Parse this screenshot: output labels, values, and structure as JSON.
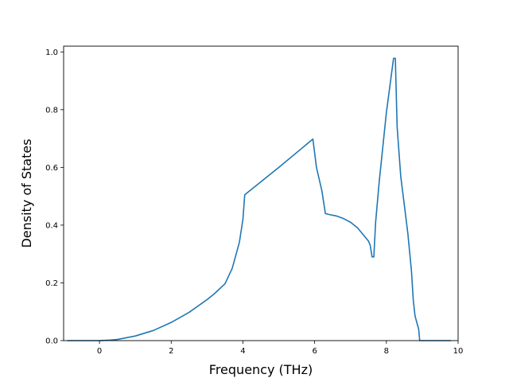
{
  "chart_data": {
    "type": "line",
    "title": "",
    "xlabel": "Frequency (THz)",
    "ylabel": "Density of States",
    "xlim": [
      -1.0,
      10.0
    ],
    "ylim": [
      0.0,
      1.02
    ],
    "xticks": [
      0,
      2,
      4,
      6,
      8,
      10
    ],
    "yticks": [
      0.0,
      0.2,
      0.4,
      0.6,
      0.8,
      1.0
    ],
    "xtick_labels": [
      "0",
      "2",
      "4",
      "6",
      "8",
      "10"
    ],
    "ytick_labels": [
      "0.0",
      "0.2",
      "0.4",
      "0.6",
      "0.8",
      "1.0"
    ],
    "grid": false,
    "series": [
      {
        "color": "#1f77b4",
        "x": [
          -0.9,
          -0.5,
          0.0,
          0.3,
          0.5,
          1.0,
          1.5,
          2.0,
          2.5,
          3.0,
          3.2,
          3.5,
          3.7,
          3.9,
          4.0,
          4.05,
          5.0,
          5.95,
          6.0,
          6.05,
          6.2,
          6.3,
          6.4,
          6.6,
          6.8,
          7.0,
          7.2,
          7.3,
          7.4,
          7.5,
          7.55,
          7.6,
          7.65,
          7.7,
          7.8,
          8.0,
          8.2,
          8.25,
          8.3,
          8.4,
          8.6,
          8.7,
          8.75,
          8.8,
          8.9,
          8.93,
          9.3,
          9.8
        ],
        "y": [
          0.0,
          0.0,
          0.0,
          0.002,
          0.004,
          0.016,
          0.035,
          0.063,
          0.098,
          0.142,
          0.162,
          0.197,
          0.25,
          0.34,
          0.42,
          0.505,
          0.6,
          0.698,
          0.65,
          0.6,
          0.52,
          0.44,
          0.437,
          0.432,
          0.423,
          0.41,
          0.39,
          0.375,
          0.36,
          0.345,
          0.33,
          0.29,
          0.29,
          0.41,
          0.55,
          0.79,
          0.978,
          0.978,
          0.74,
          0.57,
          0.37,
          0.24,
          0.14,
          0.085,
          0.04,
          0.0,
          0.0,
          0.0
        ]
      }
    ]
  }
}
